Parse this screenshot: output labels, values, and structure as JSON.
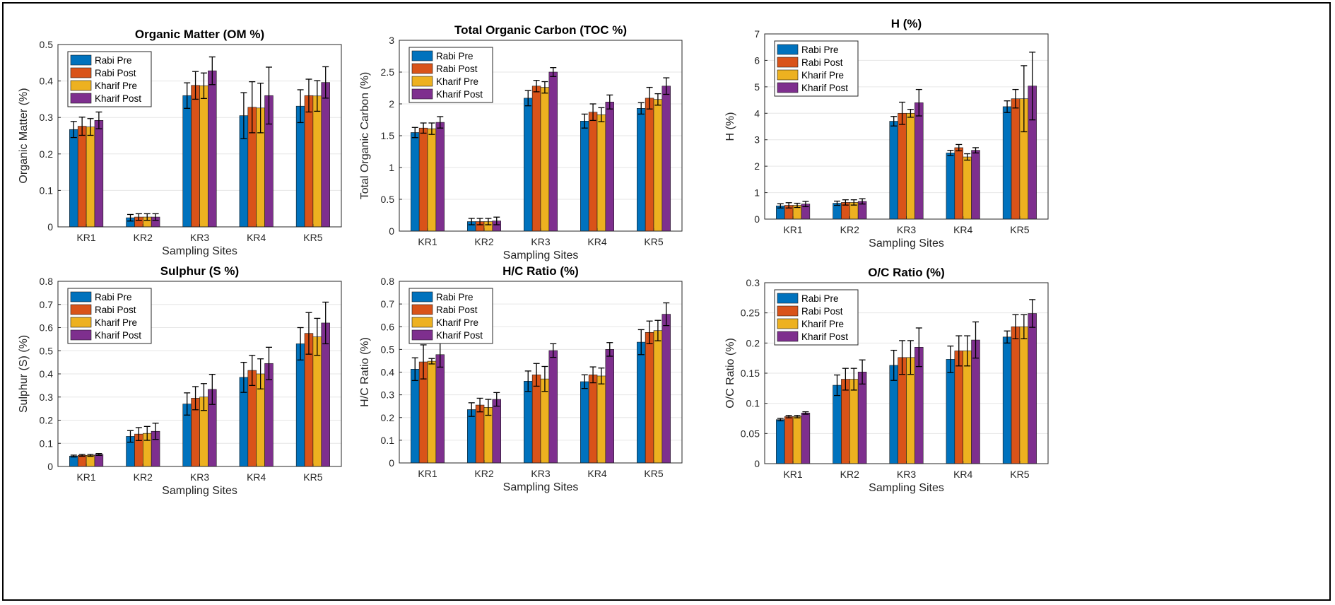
{
  "colors": {
    "series": [
      "#0072BD",
      "#D95319",
      "#EDB120",
      "#7E2F8E"
    ],
    "axis": "#262626",
    "grid": "#e6e6e6"
  },
  "chart_data": [
    {
      "type": "bar",
      "title": "Organic Matter (OM %)",
      "xlabel": "Sampling Sites",
      "ylabel": "Organic Matter (%)",
      "ylim": [
        0,
        0.5
      ],
      "yticks": [
        "0",
        "0.1",
        "0.2",
        "0.3",
        "0.4",
        "0.5"
      ],
      "grid": true,
      "legend": "top-left",
      "categories": [
        "KR1",
        "KR2",
        "KR3",
        "KR4",
        "KR5"
      ],
      "series": [
        {
          "name": "Rabi Pre",
          "values": [
            0.267,
            0.025,
            0.36,
            0.305,
            0.331
          ],
          "errors": [
            0.022,
            0.009,
            0.035,
            0.063,
            0.045
          ]
        },
        {
          "name": "Rabi Post",
          "values": [
            0.276,
            0.027,
            0.388,
            0.328,
            0.36
          ],
          "errors": [
            0.025,
            0.009,
            0.038,
            0.07,
            0.045
          ]
        },
        {
          "name": "Kharif Pre",
          "values": [
            0.274,
            0.027,
            0.387,
            0.326,
            0.359
          ],
          "errors": [
            0.023,
            0.009,
            0.035,
            0.068,
            0.042
          ]
        },
        {
          "name": "Kharif Post",
          "values": [
            0.292,
            0.027,
            0.428,
            0.36,
            0.396
          ],
          "errors": [
            0.023,
            0.009,
            0.038,
            0.078,
            0.043
          ]
        }
      ]
    },
    {
      "type": "bar",
      "title": "Total Organic Carbon (TOC %)",
      "xlabel": "Sampling Sites",
      "ylabel": "Total Organic Carbon (%)",
      "ylim": [
        0,
        3
      ],
      "yticks": [
        "0",
        "0.5",
        "1",
        "1.5",
        "2",
        "2.5",
        "3"
      ],
      "grid": true,
      "legend": "top-left",
      "categories": [
        "KR1",
        "KR2",
        "KR3",
        "KR4",
        "KR5"
      ],
      "series": [
        {
          "name": "Rabi Pre",
          "values": [
            1.55,
            0.15,
            2.09,
            1.73,
            1.93
          ],
          "errors": [
            0.08,
            0.05,
            0.12,
            0.11,
            0.09
          ]
        },
        {
          "name": "Rabi Post",
          "values": [
            1.62,
            0.15,
            2.28,
            1.87,
            2.09
          ],
          "errors": [
            0.08,
            0.05,
            0.09,
            0.13,
            0.17
          ]
        },
        {
          "name": "Kharif Pre",
          "values": [
            1.61,
            0.15,
            2.26,
            1.83,
            2.07
          ],
          "errors": [
            0.09,
            0.05,
            0.09,
            0.11,
            0.09
          ]
        },
        {
          "name": "Kharif Post",
          "values": [
            1.71,
            0.16,
            2.5,
            2.03,
            2.28
          ],
          "errors": [
            0.09,
            0.06,
            0.07,
            0.11,
            0.13
          ]
        }
      ]
    },
    {
      "type": "bar",
      "title": "H (%)",
      "xlabel": "Sampling Sites",
      "ylabel": "H (%)",
      "ylim": [
        0,
        7
      ],
      "yticks": [
        "0",
        "1",
        "2",
        "3",
        "4",
        "5",
        "6",
        "7"
      ],
      "grid": true,
      "legend": "top-left",
      "categories": [
        "KR1",
        "KR2",
        "KR3",
        "KR4",
        "KR5"
      ],
      "series": [
        {
          "name": "Rabi Pre",
          "values": [
            0.5,
            0.6,
            3.7,
            2.5,
            4.25
          ],
          "errors": [
            0.08,
            0.08,
            0.18,
            0.1,
            0.22
          ]
        },
        {
          "name": "Rabi Post",
          "values": [
            0.52,
            0.63,
            4.0,
            2.7,
            4.55
          ],
          "errors": [
            0.1,
            0.1,
            0.42,
            0.12,
            0.35
          ]
        },
        {
          "name": "Kharif Pre",
          "values": [
            0.52,
            0.63,
            4.0,
            2.35,
            4.55
          ],
          "errors": [
            0.08,
            0.1,
            0.15,
            0.12,
            1.25
          ]
        },
        {
          "name": "Kharif Post",
          "values": [
            0.57,
            0.67,
            4.4,
            2.6,
            5.03
          ],
          "errors": [
            0.1,
            0.1,
            0.5,
            0.1,
            1.28
          ]
        }
      ]
    },
    {
      "type": "bar",
      "title": "Sulphur (S %)",
      "xlabel": "Sampling Sites",
      "ylabel": "Sulphur (S) (%)",
      "ylim": [
        0,
        0.8
      ],
      "yticks": [
        "0",
        "0.1",
        "0.2",
        "0.3",
        "0.4",
        "0.5",
        "0.6",
        "0.7",
        "0.8"
      ],
      "grid": true,
      "legend": "top-left",
      "categories": [
        "KR1",
        "KR2",
        "KR3",
        "KR4",
        "KR5"
      ],
      "series": [
        {
          "name": "Rabi Pre",
          "values": [
            0.045,
            0.13,
            0.27,
            0.385,
            0.53
          ],
          "errors": [
            0.004,
            0.025,
            0.048,
            0.065,
            0.07
          ]
        },
        {
          "name": "Rabi Post",
          "values": [
            0.048,
            0.14,
            0.295,
            0.415,
            0.575
          ],
          "errors": [
            0.004,
            0.028,
            0.05,
            0.065,
            0.09
          ]
        },
        {
          "name": "Kharif Pre",
          "values": [
            0.048,
            0.143,
            0.3,
            0.4,
            0.56
          ],
          "errors": [
            0.004,
            0.03,
            0.058,
            0.065,
            0.08
          ]
        },
        {
          "name": "Kharif Post",
          "values": [
            0.052,
            0.152,
            0.333,
            0.445,
            0.62
          ],
          "errors": [
            0.004,
            0.035,
            0.065,
            0.07,
            0.09
          ]
        }
      ]
    },
    {
      "type": "bar",
      "title": "H/C Ratio (%)",
      "xlabel": "Sampling Sites",
      "ylabel": "H/C Ratio (%)",
      "ylim": [
        0,
        0.8
      ],
      "yticks": [
        "0",
        "0.1",
        "0.2",
        "0.3",
        "0.4",
        "0.5",
        "0.6",
        "0.7",
        "0.8"
      ],
      "grid": true,
      "legend": "top-left",
      "categories": [
        "KR1",
        "KR2",
        "KR3",
        "KR4",
        "KR5"
      ],
      "series": [
        {
          "name": "Rabi Pre",
          "values": [
            0.413,
            0.235,
            0.36,
            0.358,
            0.532
          ],
          "errors": [
            0.05,
            0.03,
            0.045,
            0.03,
            0.055
          ]
        },
        {
          "name": "Rabi Post",
          "values": [
            0.445,
            0.255,
            0.388,
            0.388,
            0.575
          ],
          "errors": [
            0.075,
            0.03,
            0.05,
            0.035,
            0.05
          ]
        },
        {
          "name": "Kharif Pre",
          "values": [
            0.448,
            0.245,
            0.37,
            0.383,
            0.583
          ],
          "errors": [
            0.012,
            0.035,
            0.055,
            0.035,
            0.045
          ]
        },
        {
          "name": "Kharif Post",
          "values": [
            0.477,
            0.28,
            0.495,
            0.5,
            0.655
          ],
          "errors": [
            0.055,
            0.03,
            0.03,
            0.03,
            0.05
          ]
        }
      ]
    },
    {
      "type": "bar",
      "title": "O/C Ratio (%)",
      "xlabel": "Sampling Sites",
      "ylabel": "O/C Ratio (%)",
      "ylim": [
        0,
        0.3
      ],
      "yticks": [
        "0",
        "0.05",
        "0.1",
        "0.15",
        "0.2",
        "0.25",
        "0.3"
      ],
      "grid": true,
      "legend": "top-left",
      "categories": [
        "KR1",
        "KR2",
        "KR3",
        "KR4",
        "KR5"
      ],
      "series": [
        {
          "name": "Rabi Pre",
          "values": [
            0.073,
            0.13,
            0.163,
            0.173,
            0.21
          ],
          "errors": [
            0.002,
            0.017,
            0.025,
            0.022,
            0.01
          ]
        },
        {
          "name": "Rabi Post",
          "values": [
            0.078,
            0.14,
            0.176,
            0.187,
            0.227
          ],
          "errors": [
            0.002,
            0.018,
            0.028,
            0.025,
            0.02
          ]
        },
        {
          "name": "Kharif Pre",
          "values": [
            0.078,
            0.14,
            0.176,
            0.187,
            0.227
          ],
          "errors": [
            0.002,
            0.018,
            0.028,
            0.025,
            0.02
          ]
        },
        {
          "name": "Kharif Post",
          "values": [
            0.084,
            0.152,
            0.193,
            0.205,
            0.249
          ],
          "errors": [
            0.002,
            0.02,
            0.032,
            0.03,
            0.023
          ]
        }
      ]
    }
  ]
}
